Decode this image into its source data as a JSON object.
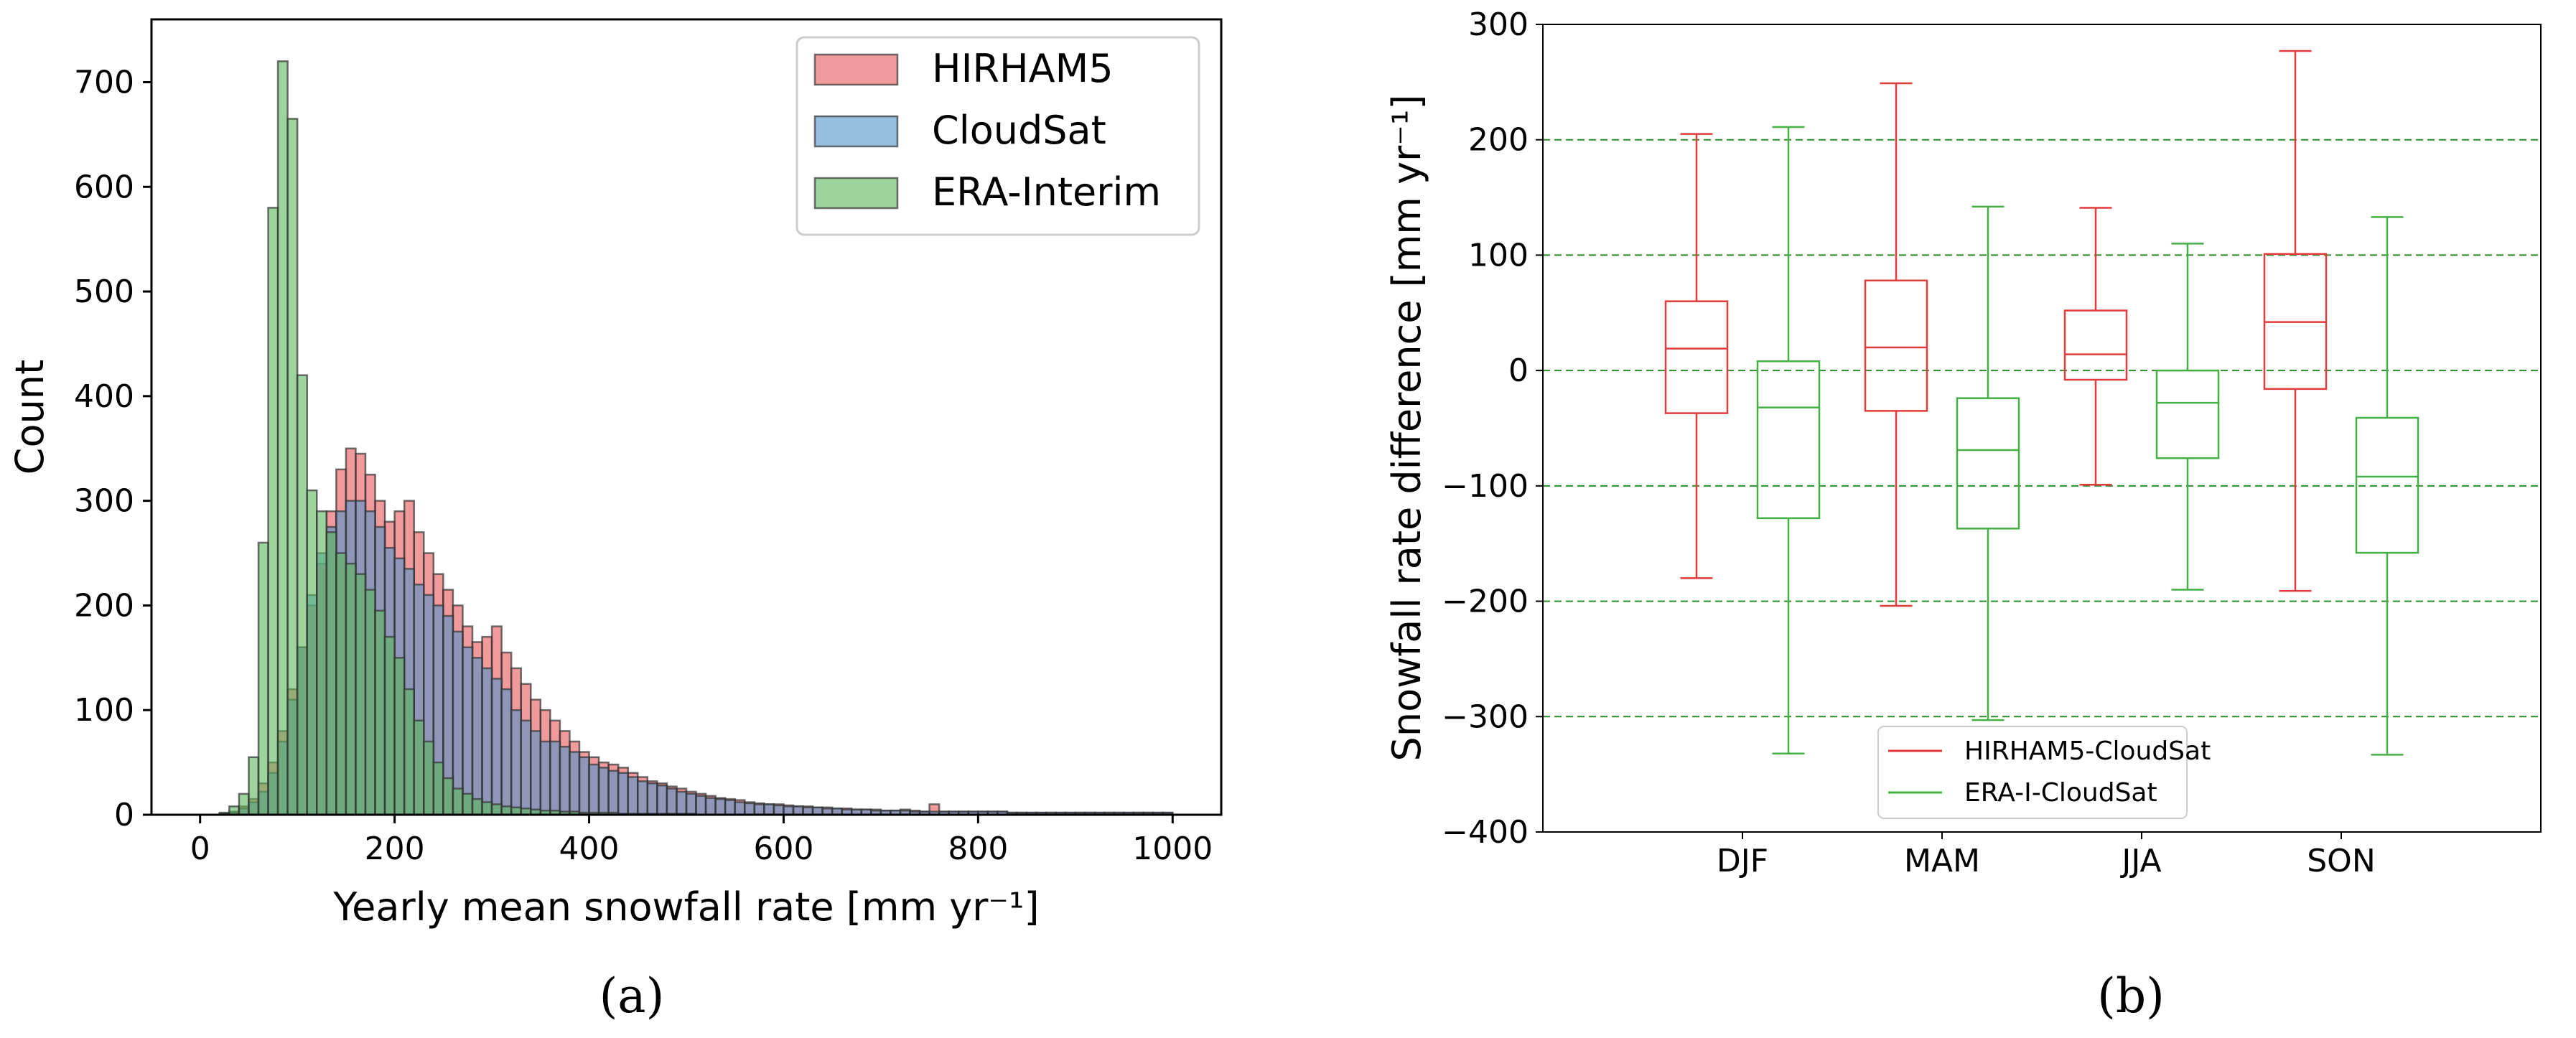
{
  "chart_data": [
    {
      "type": "histogram",
      "panel_label": "(a)",
      "xlabel": "Yearly mean snowfall rate [mm yr⁻¹]",
      "ylabel": "Count",
      "xlim": [
        -50,
        1050
      ],
      "ylim": [
        0,
        760
      ],
      "xticks": [
        0,
        200,
        400,
        600,
        800,
        1000
      ],
      "yticks": [
        0,
        100,
        200,
        300,
        400,
        500,
        600,
        700
      ],
      "bin_width": 10,
      "bin_start": 0,
      "legend_position": "top-right",
      "series": [
        {
          "name": "HIRHAM5",
          "color": "#e8575a",
          "values": [
            0,
            0,
            1,
            3,
            8,
            15,
            30,
            50,
            80,
            120,
            160,
            200,
            240,
            290,
            330,
            350,
            345,
            325,
            300,
            280,
            290,
            300,
            270,
            250,
            230,
            215,
            200,
            180,
            165,
            170,
            180,
            155,
            140,
            125,
            110,
            100,
            90,
            80,
            70,
            60,
            55,
            50,
            48,
            45,
            40,
            36,
            32,
            30,
            27,
            25,
            22,
            20,
            18,
            16,
            15,
            14,
            12,
            11,
            10,
            10,
            9,
            8,
            8,
            7,
            7,
            6,
            6,
            5,
            5,
            5,
            4,
            4,
            5,
            4,
            3,
            10,
            3,
            3,
            3,
            3,
            3,
            3,
            3,
            2,
            2,
            2,
            2,
            2,
            2,
            2,
            2,
            2,
            2,
            2,
            2,
            2,
            2,
            2,
            2,
            2
          ]
        },
        {
          "name": "CloudSat",
          "color": "#4f95cc",
          "values": [
            0,
            0,
            1,
            2,
            6,
            12,
            22,
            40,
            70,
            110,
            160,
            210,
            250,
            275,
            290,
            300,
            300,
            290,
            275,
            255,
            245,
            235,
            220,
            210,
            200,
            190,
            175,
            160,
            150,
            140,
            130,
            120,
            100,
            90,
            80,
            70,
            70,
            65,
            60,
            55,
            48,
            45,
            42,
            40,
            36,
            32,
            30,
            28,
            25,
            22,
            20,
            18,
            16,
            15,
            14,
            12,
            11,
            10,
            10,
            9,
            8,
            8,
            7,
            7,
            6,
            6,
            5,
            5,
            5,
            4,
            4,
            4,
            4,
            3,
            3,
            3,
            3,
            3,
            3,
            3,
            3,
            3,
            3,
            2,
            2,
            2,
            2,
            2,
            2,
            2,
            2,
            2,
            2,
            2,
            2,
            2,
            2,
            2,
            2,
            2
          ]
        },
        {
          "name": "ERA-Interim",
          "color": "#5cb85c",
          "values": [
            0,
            0,
            2,
            8,
            20,
            55,
            260,
            580,
            720,
            665,
            420,
            310,
            290,
            270,
            250,
            240,
            230,
            215,
            195,
            170,
            150,
            120,
            90,
            70,
            50,
            35,
            25,
            20,
            15,
            12,
            10,
            8,
            7,
            6,
            5,
            4,
            4,
            3,
            3,
            2,
            2,
            2,
            2,
            1,
            1,
            1,
            1,
            1,
            1,
            1,
            1,
            0,
            0,
            0,
            0,
            0,
            0,
            0,
            0,
            0,
            0,
            0,
            0,
            0,
            0,
            0,
            0,
            0,
            0,
            0,
            0,
            0,
            0,
            0,
            0,
            0,
            0,
            0,
            0,
            0,
            0,
            0,
            0,
            0,
            0,
            0,
            0,
            0,
            0,
            0,
            0,
            0,
            0,
            0,
            0,
            0,
            0,
            0,
            0,
            0
          ]
        }
      ]
    },
    {
      "type": "boxplot",
      "panel_label": "(b)",
      "xlabel": "",
      "ylabel": "Snowfall rate difference [mm yr⁻¹]",
      "ylim": [
        -400,
        300
      ],
      "yticks": [
        -400,
        -300,
        -200,
        -100,
        0,
        100,
        200,
        300
      ],
      "categories": [
        "DJF",
        "MAM",
        "JJA",
        "SON"
      ],
      "grid": "horizontal dashed",
      "grid_color": "#2e8b2e",
      "legend_position": "bottom-center",
      "series": [
        {
          "name": "HIRHAM5-CloudSat",
          "color": "#e33a3a",
          "boxes": [
            {
              "whislo": -180,
              "q1": -37,
              "med": 19,
              "q3": 60,
              "whishi": 205
            },
            {
              "whislo": -204,
              "q1": -35,
              "med": 20,
              "q3": 78,
              "whishi": 249
            },
            {
              "whislo": -99,
              "q1": -8,
              "med": 14,
              "q3": 52,
              "whishi": 141
            },
            {
              "whislo": -191,
              "q1": -16,
              "med": 42,
              "q3": 101,
              "whishi": 277
            }
          ]
        },
        {
          "name": "ERA-I-CloudSat",
          "color": "#44b044",
          "boxes": [
            {
              "whislo": -332,
              "q1": -128,
              "med": -32,
              "q3": 8,
              "whishi": 211
            },
            {
              "whislo": -303,
              "q1": -137,
              "med": -69,
              "q3": -24,
              "whishi": 142
            },
            {
              "whislo": -190,
              "q1": -76,
              "med": -28,
              "q3": 0,
              "whishi": 110
            },
            {
              "whislo": -333,
              "q1": -158,
              "med": -92,
              "q3": -41,
              "whishi": 133
            }
          ]
        }
      ]
    }
  ]
}
